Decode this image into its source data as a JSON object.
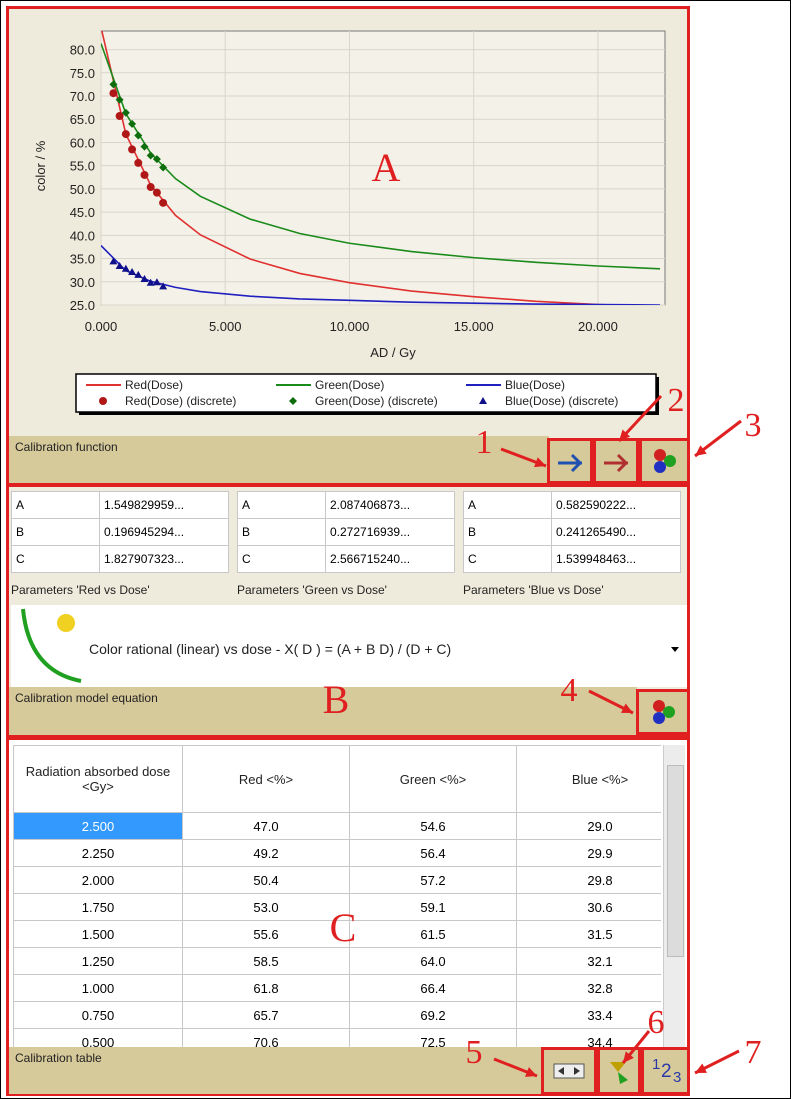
{
  "chart_panel": {
    "chart": {
      "type": "line",
      "x_label": "AD / Gy",
      "y_label": "color / %",
      "xlim": [
        0,
        22.7
      ],
      "ylim": [
        25,
        84
      ],
      "xticks": [
        {
          "value": 0,
          "label": "0.000"
        },
        {
          "value": 5,
          "label": "5.000"
        },
        {
          "value": 10,
          "label": "10.000"
        },
        {
          "value": 15,
          "label": "15.000"
        },
        {
          "value": 20,
          "label": "20.000"
        }
      ],
      "yticks": [
        {
          "value": 25,
          "label": "25.0"
        },
        {
          "value": 30,
          "label": "30.0"
        },
        {
          "value": 35,
          "label": "35.0"
        },
        {
          "value": 40,
          "label": "40.0"
        },
        {
          "value": 45,
          "label": "45.0"
        },
        {
          "value": 50,
          "label": "50.0"
        },
        {
          "value": 55,
          "label": "55.0"
        },
        {
          "value": 60,
          "label": "60.0"
        },
        {
          "value": 65,
          "label": "65.0"
        },
        {
          "value": 70,
          "label": "70.0"
        },
        {
          "value": 75,
          "label": "75.0"
        },
        {
          "value": 80,
          "label": "80.0"
        }
      ],
      "grid": true,
      "x": [
        0,
        1,
        2,
        3,
        4,
        6,
        8,
        10,
        12.5,
        15,
        17.5,
        20,
        22.5
      ],
      "series": [
        {
          "name": "Red(Dose)",
          "color": "#e03030",
          "values": [
            84.8,
            61.8,
            50.8,
            44.3,
            40.1,
            34.9,
            31.8,
            29.8,
            28.0,
            26.8,
            25.8,
            25.1,
            24.6
          ]
        },
        {
          "name": "Green(Dose)",
          "color": "#1a8a1a",
          "values": [
            81.3,
            66.2,
            57.7,
            52.2,
            48.4,
            43.5,
            40.4,
            38.3,
            36.5,
            35.2,
            34.2,
            33.4,
            32.8
          ]
        },
        {
          "name": "Blue(Dose)",
          "color": "#2020c0",
          "values": [
            37.8,
            32.4,
            30.1,
            28.8,
            27.9,
            26.9,
            26.3,
            26.0,
            25.6,
            25.4,
            25.2,
            25.1,
            25.0
          ]
        }
      ],
      "discrete_series": [
        {
          "name": "Red(Dose) (discrete)",
          "color": "#b01818",
          "marker": "circle",
          "column": 1
        },
        {
          "name": "Green(Dose) (discrete)",
          "color": "#0e6e0e",
          "marker": "diamond",
          "column": 2
        },
        {
          "name": "Blue(Dose) (discrete)",
          "color": "#10108a",
          "marker": "triangle",
          "column": 3
        }
      ]
    },
    "section_label": "Calibration function"
  },
  "parameters": [
    {
      "title": "Parameters 'Red vs Dose'",
      "rows": [
        [
          "A",
          "1.549829959..."
        ],
        [
          "B",
          "0.196945294..."
        ],
        [
          "C",
          "1.827907323..."
        ]
      ]
    },
    {
      "title": "Parameters 'Green vs Dose'",
      "rows": [
        [
          "A",
          "2.087406873..."
        ],
        [
          "B",
          "0.272716939..."
        ],
        [
          "C",
          "2.566715240..."
        ]
      ]
    },
    {
      "title": "Parameters 'Blue vs Dose'",
      "rows": [
        [
          "A",
          "0.582590222..."
        ],
        [
          "B",
          "0.241265490..."
        ],
        [
          "C",
          "1.539948463..."
        ]
      ]
    }
  ],
  "model": {
    "text": "Color rational (linear) vs dose - X( D ) = (A + B D) / (D + C)",
    "section_label": "Calibration model equation"
  },
  "table": {
    "headers": [
      "Radiation absorbed dose <Gy>",
      "Red <%>",
      "Green <%>",
      "Blue <%>"
    ],
    "rows": [
      [
        "2.500",
        "47.0",
        "54.6",
        "29.0"
      ],
      [
        "2.250",
        "49.2",
        "56.4",
        "29.9"
      ],
      [
        "2.000",
        "50.4",
        "57.2",
        "29.8"
      ],
      [
        "1.750",
        "53.0",
        "59.1",
        "30.6"
      ],
      [
        "1.500",
        "55.6",
        "61.5",
        "31.5"
      ],
      [
        "1.250",
        "58.5",
        "64.0",
        "32.1"
      ],
      [
        "1.000",
        "61.8",
        "66.4",
        "32.8"
      ],
      [
        "0.750",
        "65.7",
        "69.2",
        "33.4"
      ],
      [
        "0.500",
        "70.6",
        "72.5",
        "34.4"
      ]
    ],
    "section_label": "Calibration table"
  },
  "number_format_icon": [
    "1",
    "2",
    "3"
  ],
  "annotations": {
    "letters": [
      "A",
      "B",
      "C"
    ],
    "numbers": [
      "1",
      "2",
      "3",
      "4",
      "5",
      "6",
      "7"
    ]
  }
}
